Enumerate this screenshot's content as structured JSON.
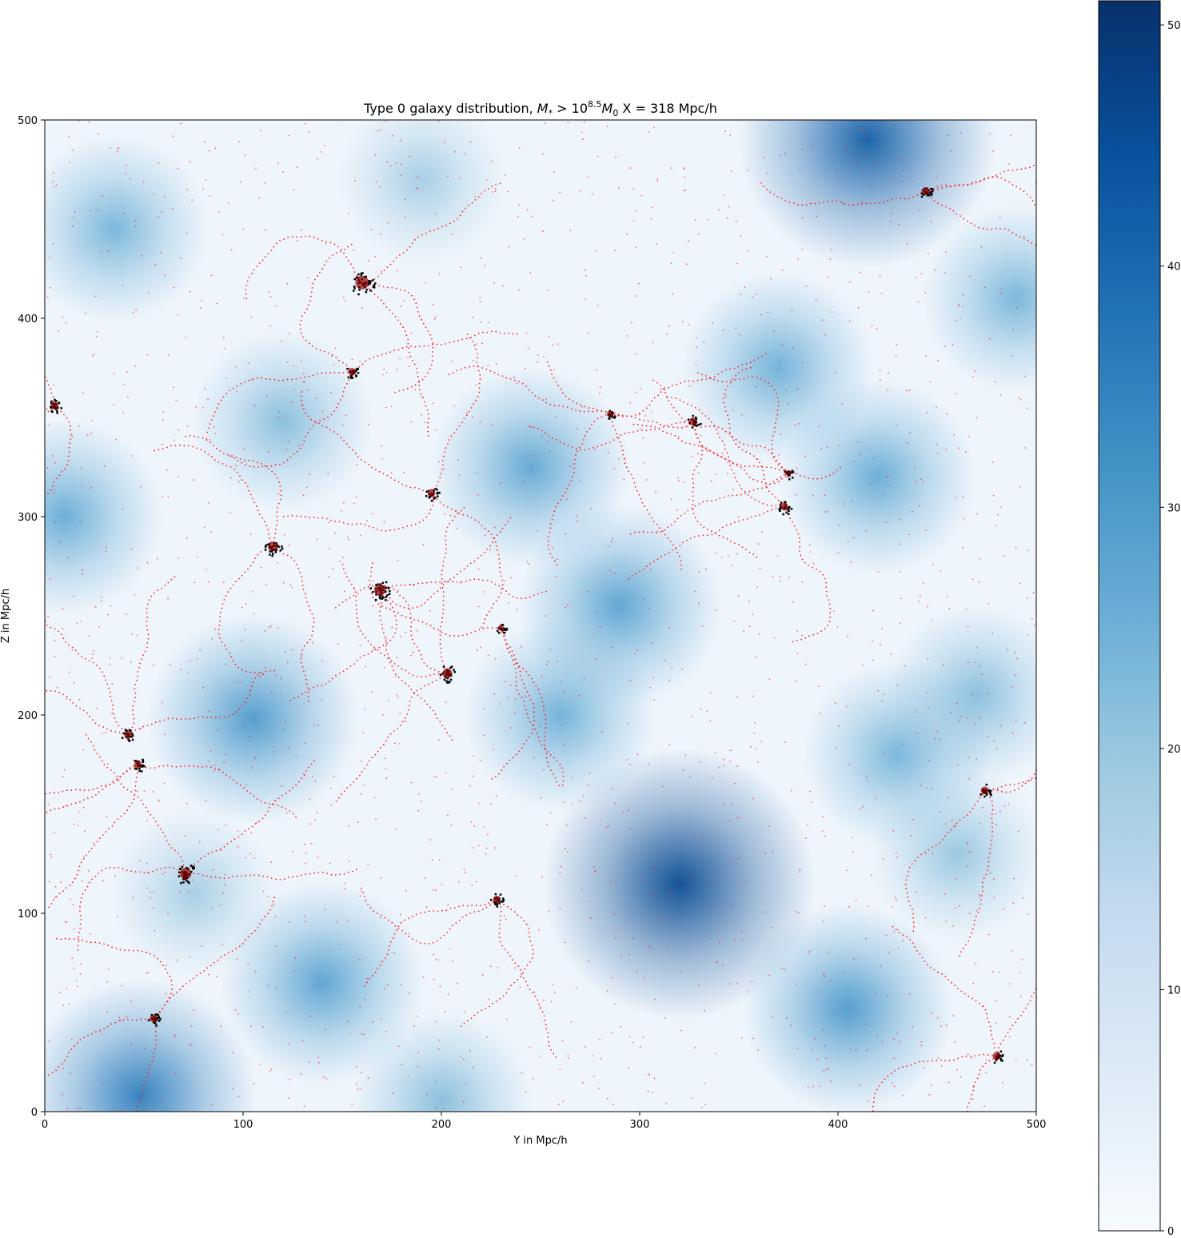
{
  "chart_data": {
    "type": "heatmap",
    "title": "Type 0 galaxy distribution, M* > 10^8.5 M0 X = 318 Mpc/h",
    "title_parts": {
      "prefix": "Type 0 galaxy distribution, ",
      "M": "M",
      "star": "*",
      "gt": " > 10",
      "exponent": "8.5",
      "M2": "M",
      "sub0": "0",
      "suffix": " X = 318 Mpc/h"
    },
    "xlabel": "Y in Mpc/h",
    "ylabel": "Z in Mpc/h",
    "xlim": [
      0,
      500
    ],
    "ylim": [
      0,
      500
    ],
    "x_ticks": [
      "0",
      "100",
      "200",
      "300",
      "400",
      "500"
    ],
    "y_ticks": [
      "0",
      "100",
      "200",
      "300",
      "400",
      "500"
    ],
    "colormap": "Blues",
    "colorbar": {
      "range": [
        0,
        51
      ],
      "ticks": [
        "0",
        "10",
        "20",
        "30",
        "40",
        "50"
      ]
    },
    "background_field_peaks": [
      {
        "y": 320,
        "z": 115,
        "value": 46
      },
      {
        "y": 48,
        "z": 8,
        "value": 36
      },
      {
        "y": 415,
        "z": 490,
        "value": 42
      },
      {
        "y": 405,
        "z": 52,
        "value": 30
      },
      {
        "y": 105,
        "z": 198,
        "value": 30
      },
      {
        "y": 290,
        "z": 255,
        "value": 28
      },
      {
        "y": 245,
        "z": 325,
        "value": 27
      },
      {
        "y": 420,
        "z": 320,
        "value": 26
      },
      {
        "y": 370,
        "z": 375,
        "value": 25
      },
      {
        "y": 140,
        "z": 65,
        "value": 28
      },
      {
        "y": 35,
        "z": 445,
        "value": 24
      },
      {
        "y": 120,
        "z": 348,
        "value": 22
      },
      {
        "y": 260,
        "z": 200,
        "value": 25
      },
      {
        "y": 490,
        "z": 410,
        "value": 24
      },
      {
        "y": 470,
        "z": 210,
        "value": 22
      },
      {
        "y": 10,
        "z": 300,
        "value": 26
      },
      {
        "y": 190,
        "z": 470,
        "value": 18
      },
      {
        "y": 430,
        "z": 180,
        "value": 24
      },
      {
        "y": 460,
        "z": 130,
        "value": 20
      },
      {
        "y": 75,
        "z": 110,
        "value": 18
      },
      {
        "y": 200,
        "z": 5,
        "value": 22
      }
    ],
    "galaxy_marker_color": "#ff2020",
    "cluster_color": "#000000",
    "clusters": [
      {
        "y": 160,
        "z": 418,
        "size": 7
      },
      {
        "y": 169,
        "z": 263,
        "size": 6
      },
      {
        "y": 203,
        "z": 221,
        "size": 5
      },
      {
        "y": 71,
        "z": 120,
        "size": 6
      },
      {
        "y": 55,
        "z": 47,
        "size": 4
      },
      {
        "y": 228,
        "z": 107,
        "size": 4
      },
      {
        "y": 474,
        "z": 162,
        "size": 4
      },
      {
        "y": 444,
        "z": 464,
        "size": 4
      },
      {
        "y": 373,
        "z": 305,
        "size": 4
      },
      {
        "y": 5,
        "z": 356,
        "size": 4
      },
      {
        "y": 115,
        "z": 285,
        "size": 5
      },
      {
        "y": 155,
        "z": 373,
        "size": 4
      },
      {
        "y": 42,
        "z": 190,
        "size": 4
      },
      {
        "y": 47,
        "z": 175,
        "size": 4
      },
      {
        "y": 195,
        "z": 312,
        "size": 4
      },
      {
        "y": 327,
        "z": 348,
        "size": 4
      },
      {
        "y": 285,
        "z": 352,
        "size": 3
      },
      {
        "y": 375,
        "z": 322,
        "size": 3
      },
      {
        "y": 480,
        "z": 28,
        "size": 4
      },
      {
        "y": 230,
        "z": 244,
        "size": 3
      }
    ]
  }
}
